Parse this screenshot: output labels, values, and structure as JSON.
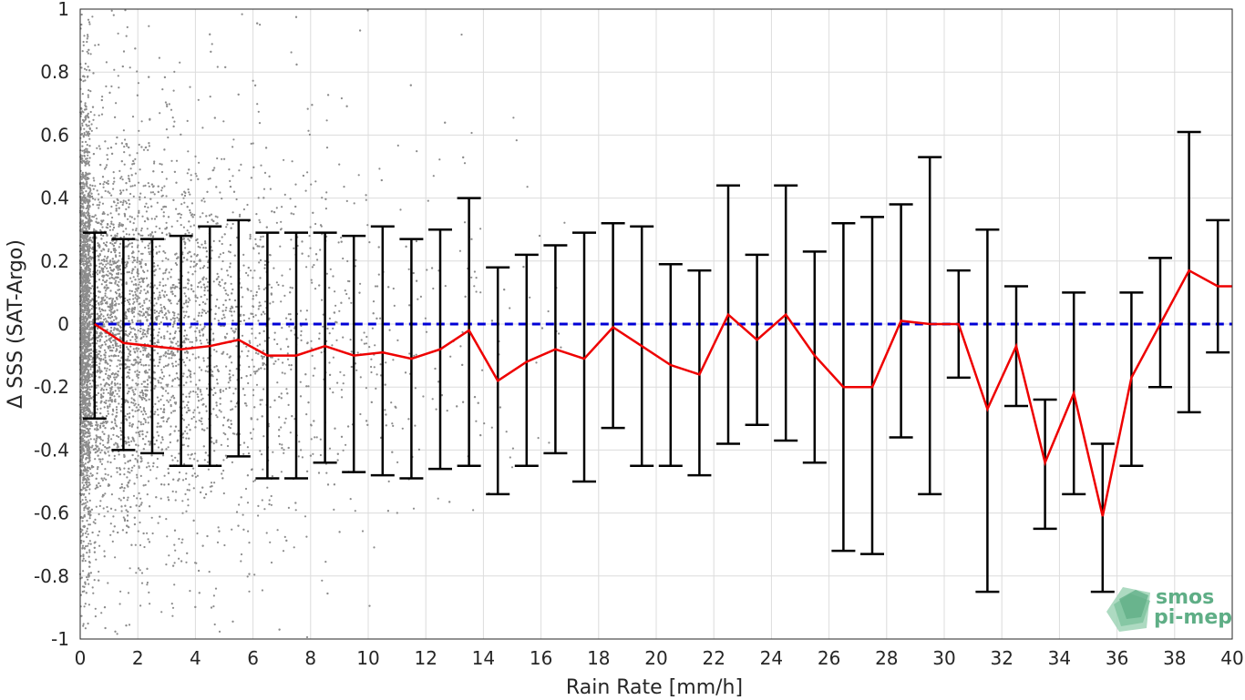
{
  "chart_data": {
    "type": "scatter",
    "xlabel": "Rain Rate [mm/h]",
    "ylabel": "Δ SSS (SAT-Argo)",
    "xlim": [
      0,
      40
    ],
    "ylim": [
      -1,
      1
    ],
    "xticks": [
      "0",
      "2",
      "4",
      "6",
      "8",
      "10",
      "12",
      "14",
      "16",
      "18",
      "20",
      "22",
      "24",
      "26",
      "28",
      "30",
      "32",
      "34",
      "36",
      "38",
      "40"
    ],
    "yticks": [
      "1",
      "0.8",
      "0.6",
      "0.4",
      "0.2",
      "0",
      "-0.2",
      "-0.4",
      "-0.6",
      "-0.8",
      "-1"
    ],
    "grid": true,
    "reference_line": {
      "y": 0,
      "style": "dashed",
      "color": "#0000d6"
    },
    "scatter_color": "#8c8c8c",
    "mean_line_color": "#ee0000",
    "errorbar_color": "#000000",
    "bins": [
      {
        "x": 0.5,
        "mean": 0.0,
        "upper": 0.29,
        "lower": -0.3
      },
      {
        "x": 1.5,
        "mean": -0.06,
        "upper": 0.27,
        "lower": -0.4
      },
      {
        "x": 2.5,
        "mean": -0.07,
        "upper": 0.27,
        "lower": -0.41
      },
      {
        "x": 3.5,
        "mean": -0.08,
        "upper": 0.28,
        "lower": -0.45
      },
      {
        "x": 4.5,
        "mean": -0.07,
        "upper": 0.31,
        "lower": -0.45
      },
      {
        "x": 5.5,
        "mean": -0.05,
        "upper": 0.33,
        "lower": -0.42
      },
      {
        "x": 6.5,
        "mean": -0.1,
        "upper": 0.29,
        "lower": -0.49
      },
      {
        "x": 7.5,
        "mean": -0.1,
        "upper": 0.29,
        "lower": -0.49
      },
      {
        "x": 8.5,
        "mean": -0.07,
        "upper": 0.29,
        "lower": -0.44
      },
      {
        "x": 9.5,
        "mean": -0.1,
        "upper": 0.28,
        "lower": -0.47
      },
      {
        "x": 10.5,
        "mean": -0.09,
        "upper": 0.31,
        "lower": -0.48
      },
      {
        "x": 11.5,
        "mean": -0.11,
        "upper": 0.27,
        "lower": -0.49
      },
      {
        "x": 12.5,
        "mean": -0.08,
        "upper": 0.3,
        "lower": -0.46
      },
      {
        "x": 13.5,
        "mean": -0.02,
        "upper": 0.4,
        "lower": -0.45
      },
      {
        "x": 14.5,
        "mean": -0.18,
        "upper": 0.18,
        "lower": -0.54
      },
      {
        "x": 15.5,
        "mean": -0.12,
        "upper": 0.22,
        "lower": -0.45
      },
      {
        "x": 16.5,
        "mean": -0.08,
        "upper": 0.25,
        "lower": -0.41
      },
      {
        "x": 17.5,
        "mean": -0.11,
        "upper": 0.29,
        "lower": -0.5
      },
      {
        "x": 18.5,
        "mean": -0.01,
        "upper": 0.32,
        "lower": -0.33
      },
      {
        "x": 19.5,
        "mean": -0.07,
        "upper": 0.31,
        "lower": -0.45
      },
      {
        "x": 20.5,
        "mean": -0.13,
        "upper": 0.19,
        "lower": -0.45
      },
      {
        "x": 21.5,
        "mean": -0.16,
        "upper": 0.17,
        "lower": -0.48
      },
      {
        "x": 22.5,
        "mean": 0.03,
        "upper": 0.44,
        "lower": -0.38
      },
      {
        "x": 23.5,
        "mean": -0.05,
        "upper": 0.22,
        "lower": -0.32
      },
      {
        "x": 24.5,
        "mean": 0.03,
        "upper": 0.44,
        "lower": -0.37
      },
      {
        "x": 25.5,
        "mean": -0.1,
        "upper": 0.23,
        "lower": -0.44
      },
      {
        "x": 26.5,
        "mean": -0.2,
        "upper": 0.32,
        "lower": -0.72
      },
      {
        "x": 27.5,
        "mean": -0.2,
        "upper": 0.34,
        "lower": -0.73
      },
      {
        "x": 28.5,
        "mean": 0.01,
        "upper": 0.38,
        "lower": -0.36
      },
      {
        "x": 29.5,
        "mean": 0.0,
        "upper": 0.53,
        "lower": -0.54
      },
      {
        "x": 30.5,
        "mean": 0.0,
        "upper": 0.17,
        "lower": -0.17
      },
      {
        "x": 31.5,
        "mean": -0.27,
        "upper": 0.3,
        "lower": -0.85
      },
      {
        "x": 32.5,
        "mean": -0.07,
        "upper": 0.12,
        "lower": -0.26
      },
      {
        "x": 33.5,
        "mean": -0.44,
        "upper": -0.24,
        "lower": -0.65
      },
      {
        "x": 34.5,
        "mean": -0.22,
        "upper": 0.1,
        "lower": -0.54
      },
      {
        "x": 35.5,
        "mean": -0.61,
        "upper": -0.38,
        "lower": -0.85
      },
      {
        "x": 36.5,
        "mean": -0.17,
        "upper": 0.1,
        "lower": -0.45
      },
      {
        "x": 37.5,
        "mean": 0.0,
        "upper": 0.21,
        "lower": -0.2
      },
      {
        "x": 38.5,
        "mean": 0.17,
        "upper": 0.61,
        "lower": -0.28
      },
      {
        "x": 39.5,
        "mean": 0.12,
        "upper": 0.33,
        "lower": -0.09
      },
      {
        "x": 40,
        "mean": 0.12
      }
    ]
  },
  "logo": {
    "line1": "smos",
    "line2": "pi-mep"
  }
}
